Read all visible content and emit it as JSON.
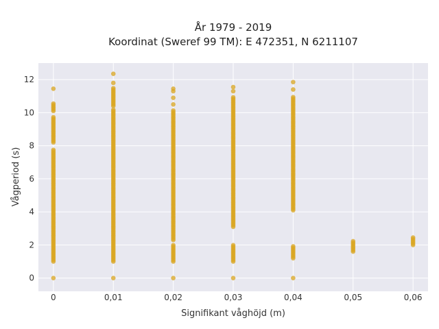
{
  "chart_data": {
    "type": "scatter",
    "title": [
      "År 1979 - 2019",
      "Koordinat (Sweref 99 TM): E 472351, N 6211107"
    ],
    "xlabel": "Signifikant våghöjd (m)",
    "ylabel": "Vågperiod (s)",
    "xlim": [
      -0.0025,
      0.0625
    ],
    "ylim": [
      -0.8,
      13
    ],
    "x_ticks": [
      0,
      0.01,
      0.02,
      0.03,
      0.04,
      0.05,
      0.06
    ],
    "x_tick_labels": [
      "0",
      "0,01",
      "0,02",
      "0,03",
      "0,04",
      "0,05",
      "0,06"
    ],
    "y_ticks": [
      0,
      2,
      4,
      6,
      8,
      10,
      12
    ],
    "y_tick_labels": [
      "0",
      "2",
      "4",
      "6",
      "8",
      "10",
      "12"
    ],
    "grid": true,
    "plot_background": "#e8e8f0",
    "grid_color": "#ffffff",
    "marker_color": "#daa520",
    "series": [
      {
        "x": 0,
        "y_ranges": [
          [
            0,
            0
          ],
          [
            1.0,
            7.8
          ],
          [
            8.2,
            9.8
          ],
          [
            10.1,
            10.6
          ]
        ],
        "y_points": [
          11.45
        ]
      },
      {
        "x": 0.01,
        "y_ranges": [
          [
            0,
            0
          ],
          [
            1.0,
            10.2
          ],
          [
            10.4,
            11.5
          ]
        ],
        "y_points": [
          11.8,
          12.35
        ]
      },
      {
        "x": 0.02,
        "y_ranges": [
          [
            0,
            0
          ],
          [
            1.0,
            2.0
          ],
          [
            2.3,
            10.2
          ]
        ],
        "y_points": [
          10.5,
          10.9,
          11.3,
          11.45
        ]
      },
      {
        "x": 0.03,
        "y_ranges": [
          [
            0,
            0
          ],
          [
            1.0,
            2.0
          ],
          [
            3.1,
            11.0
          ]
        ],
        "y_points": [
          11.3,
          11.55
        ]
      },
      {
        "x": 0.04,
        "y_ranges": [
          [
            0,
            0
          ],
          [
            1.2,
            2.0
          ],
          [
            4.1,
            11.0
          ]
        ],
        "y_points": [
          11.4,
          11.85
        ]
      },
      {
        "x": 0.05,
        "y_ranges": [
          [
            1.6,
            2.3
          ]
        ],
        "y_points": []
      },
      {
        "x": 0.06,
        "y_ranges": [
          [
            2.0,
            2.5
          ]
        ],
        "y_points": []
      }
    ]
  }
}
